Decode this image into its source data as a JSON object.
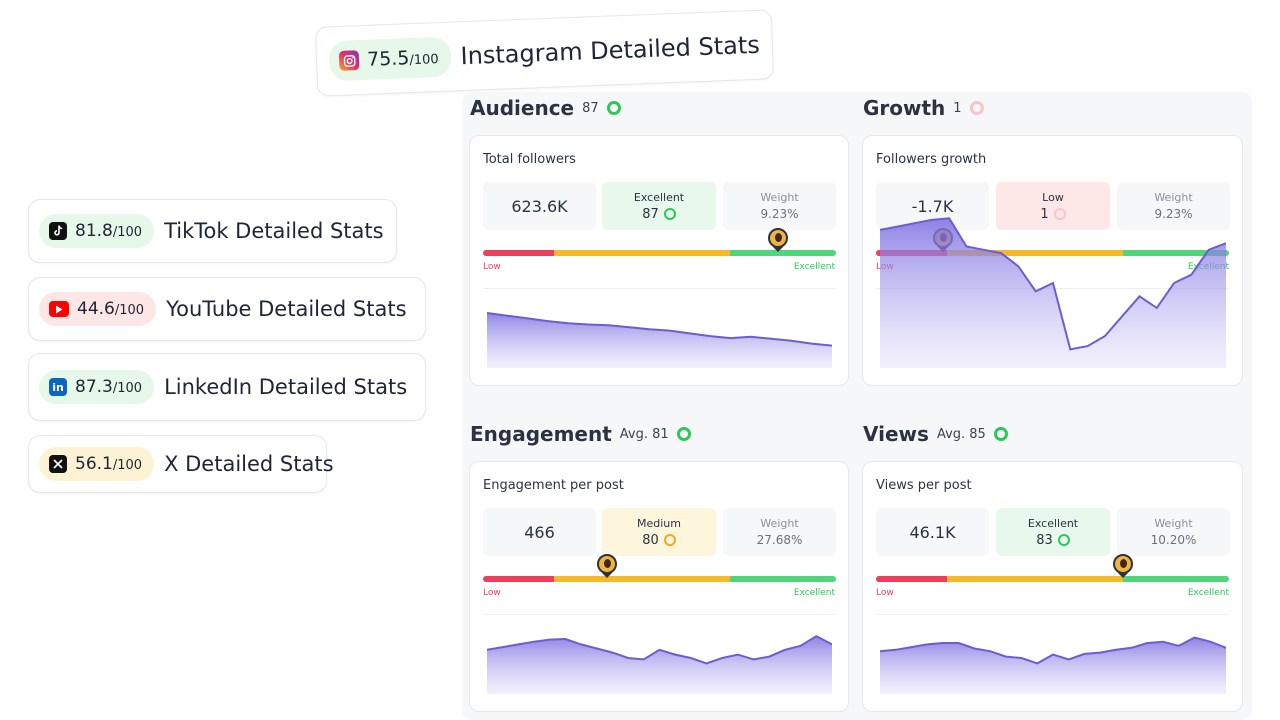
{
  "colors": {
    "accent": "#6c5dd3",
    "good": "#2ec85a",
    "bad": "#ef3e5c",
    "medium": "#f7b928"
  },
  "instagram": {
    "icon": "instagram-icon",
    "score": "75.5",
    "score_max": "/100",
    "title": "Instagram Detailed Stats"
  },
  "platforms": [
    {
      "icon": "tiktok-icon",
      "score": "81.8",
      "score_max": "/100",
      "title": "TikTok Detailed Stats"
    },
    {
      "icon": "youtube-icon",
      "score": "44.6",
      "score_max": "/100",
      "title": "YouTube Detailed Stats"
    },
    {
      "icon": "linkedin-icon",
      "score": "87.3",
      "score_max": "/100",
      "title": "LinkedIn Detailed Stats"
    },
    {
      "icon": "x-icon",
      "score": "56.1",
      "score_max": "/100",
      "title": "X Detailed Stats"
    }
  ],
  "sections": {
    "audience": {
      "title": "Audience",
      "meta": "87",
      "card_title": "Total followers",
      "value": "623.6K",
      "rating_label": "Excellent",
      "rating_value": "87",
      "weight_label": "Weight",
      "weight_value": "9.23%",
      "scale_low": "Low",
      "scale_high": "Excellent",
      "marker_position": 0.835,
      "trend": [
        0.78,
        0.74,
        0.7,
        0.66,
        0.63,
        0.61,
        0.6,
        0.57,
        0.54,
        0.52,
        0.48,
        0.44,
        0.41,
        0.43,
        0.4,
        0.37,
        0.33,
        0.3
      ]
    },
    "growth": {
      "title": "Growth",
      "meta": "1",
      "card_title": "Followers growth",
      "value": "-1.7K",
      "rating_label": "Low",
      "rating_value": "1",
      "weight_label": "Weight",
      "weight_value": "9.23%",
      "scale_low": "Low",
      "scale_high": "Excellent",
      "marker_position": 0.19,
      "trend": [
        0.82,
        0.84,
        0.86,
        0.88,
        0.89,
        0.72,
        0.7,
        0.68,
        0.6,
        0.45,
        0.5,
        0.1,
        0.12,
        0.18,
        0.3,
        0.42,
        0.35,
        0.5,
        0.55,
        0.7,
        0.74
      ]
    },
    "engagement": {
      "title": "Engagement",
      "meta": "Avg. 81",
      "card_title": "Engagement per post",
      "value": "466",
      "rating_label": "Medium",
      "rating_value": "80",
      "weight_label": "Weight",
      "weight_value": "27.68%",
      "scale_low": "Low",
      "scale_high": "Excellent",
      "marker_position": 0.35,
      "trend": [
        0.62,
        0.66,
        0.7,
        0.74,
        0.77,
        0.78,
        0.7,
        0.64,
        0.58,
        0.5,
        0.48,
        0.62,
        0.55,
        0.5,
        0.42,
        0.5,
        0.55,
        0.48,
        0.52,
        0.62,
        0.68,
        0.82,
        0.7
      ]
    },
    "views": {
      "title": "Views",
      "meta": "Avg. 85",
      "card_title": "Views per post",
      "value": "46.1K",
      "rating_label": "Excellent",
      "rating_value": "83",
      "weight_label": "Weight",
      "weight_value": "10.20%",
      "scale_low": "Low",
      "scale_high": "Excellent",
      "marker_position": 0.7,
      "trend": [
        0.6,
        0.62,
        0.66,
        0.7,
        0.72,
        0.72,
        0.64,
        0.6,
        0.52,
        0.5,
        0.42,
        0.55,
        0.48,
        0.56,
        0.58,
        0.62,
        0.65,
        0.72,
        0.74,
        0.68,
        0.8,
        0.74,
        0.65
      ]
    }
  }
}
